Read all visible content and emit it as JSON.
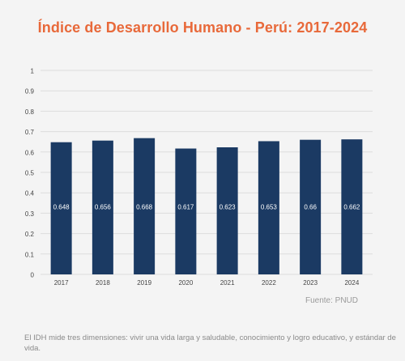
{
  "chart_data": {
    "type": "bar",
    "title": "Índice de Desarrollo Humano - Perú: 2017-2024",
    "categories": [
      "2017",
      "2018",
      "2019",
      "2020",
      "2021",
      "2022",
      "2023",
      "2024"
    ],
    "values": [
      0.648,
      0.656,
      0.668,
      0.617,
      0.623,
      0.653,
      0.66,
      0.662
    ],
    "value_labels": [
      "0.648",
      "0.656",
      "0.668",
      "0.617",
      "0.623",
      "0.653",
      "0.66",
      "0.662"
    ],
    "ylim": [
      0,
      1
    ],
    "yticks": [
      "0",
      "0.1",
      "0.2",
      "0.3",
      "0.4",
      "0.5",
      "0.6",
      "0.7",
      "0.8",
      "0.9",
      "1"
    ],
    "grid": true,
    "bar_color": "#1b3a63",
    "label_color": "#ffffff"
  },
  "source": "Fuente: PNUD",
  "note": "El IDH mide tres dimensiones: vivir una vida larga y saludable, conocimiento y logro educativo, y estándar de vida.",
  "colors": {
    "title": "#e8693a",
    "grid": "#dcdcdc",
    "axis_text": "#444444"
  }
}
